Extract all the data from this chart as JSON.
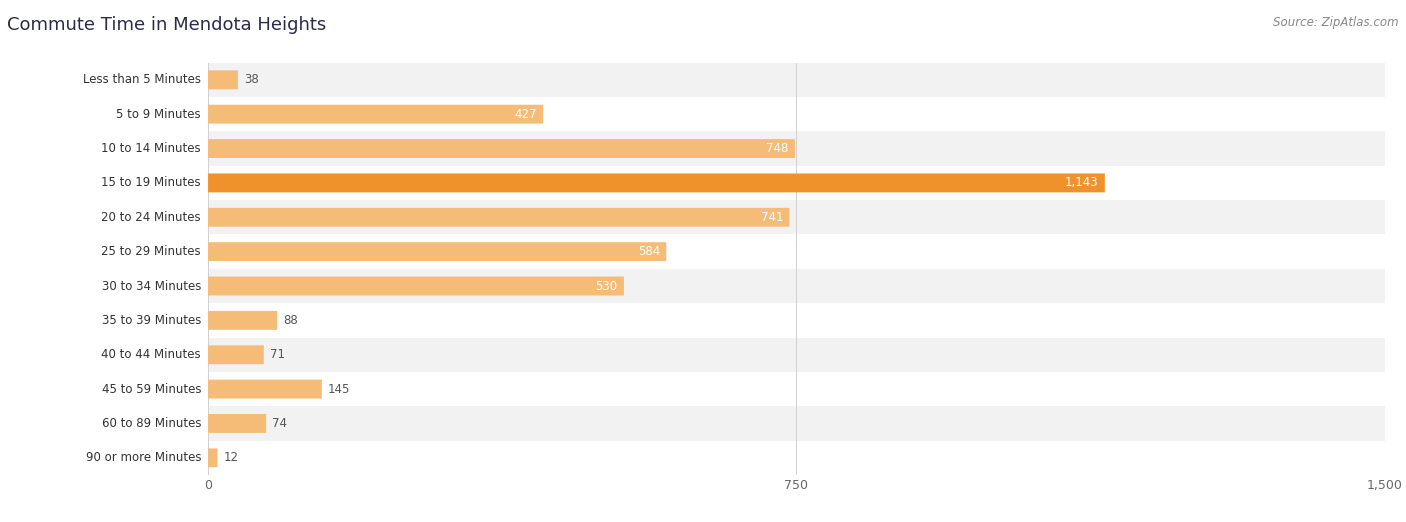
{
  "title": "Commute Time in Mendota Heights",
  "source": "Source: ZipAtlas.com",
  "categories": [
    "Less than 5 Minutes",
    "5 to 9 Minutes",
    "10 to 14 Minutes",
    "15 to 19 Minutes",
    "20 to 24 Minutes",
    "25 to 29 Minutes",
    "30 to 34 Minutes",
    "35 to 39 Minutes",
    "40 to 44 Minutes",
    "45 to 59 Minutes",
    "60 to 89 Minutes",
    "90 or more Minutes"
  ],
  "values": [
    38,
    427,
    748,
    1143,
    741,
    584,
    530,
    88,
    71,
    145,
    74,
    12
  ],
  "xlim_max": 1500,
  "xticks": [
    0,
    750,
    1500
  ],
  "bar_color_normal": "#f5bc78",
  "bar_color_highlight": "#f0922b",
  "highlight_index": 3,
  "bar_height": 0.55,
  "background_color": "#ffffff",
  "row_bg_color_odd": "#f2f2f2",
  "row_bg_color_even": "#ffffff",
  "title_color": "#2b2b4b",
  "title_fontsize": 13,
  "source_fontsize": 8.5,
  "label_fontsize": 8.5,
  "value_fontsize": 8.5,
  "tick_fontsize": 9,
  "grid_color": "#d0d0d0",
  "label_color": "#333333",
  "value_color_inside": "#ffffff",
  "value_color_outside": "#555555",
  "value_threshold": 200
}
